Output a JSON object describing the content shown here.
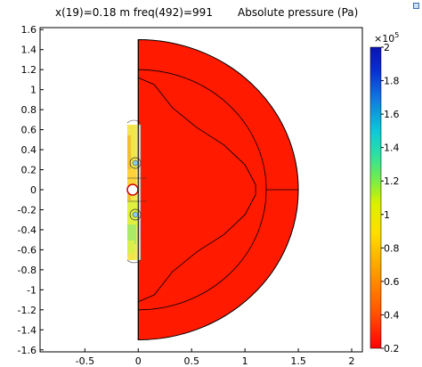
{
  "header": {
    "left": "x(19)=0.18 m freq(492)=991",
    "right": "Absolute pressure (Pa)"
  },
  "plot": {
    "x_ticks": [
      "-0.5",
      "0",
      "0.5",
      "1",
      "1.5",
      "2"
    ],
    "y_ticks": [
      "1.6",
      "1.4",
      "1.2",
      "1",
      "0.8",
      "0.6",
      "0.4",
      "0.2",
      "0",
      "-0.2",
      "-0.4",
      "-0.6",
      "-0.8",
      "-1",
      "-1.2",
      "-1.4",
      "-1.6"
    ],
    "xlim": [
      -0.92,
      2.1
    ],
    "ylim": [
      -1.62,
      1.62
    ],
    "domain_radius": 1.5,
    "field_color": "#ff1a00"
  },
  "colorbar": {
    "exponent_label": "×10",
    "exponent_power": "5",
    "ticks": [
      "2",
      "1.8",
      "1.6",
      "1.4",
      "1.2",
      "1",
      "0.8",
      "0.6",
      "0.4",
      "0.2"
    ],
    "range": [
      0.2,
      2.0
    ]
  }
}
